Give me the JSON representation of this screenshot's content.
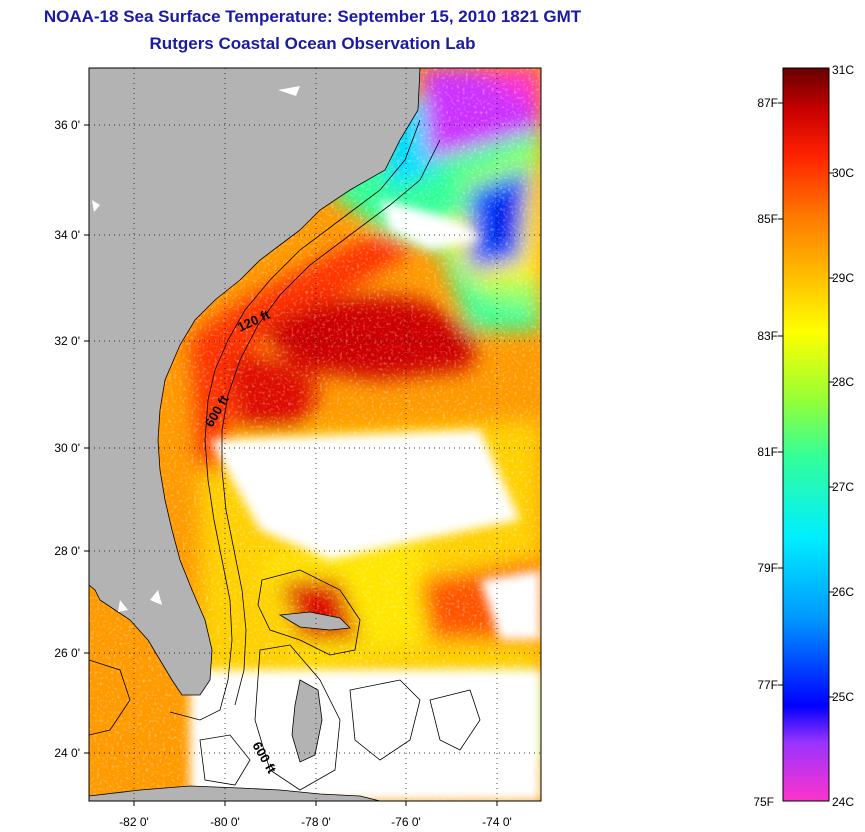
{
  "title": "NOAA-18 Sea Surface Temperature:  September 15, 2010 1821 GMT",
  "subtitle": "Rutgers Coastal Ocean Observation Lab",
  "map": {
    "lon_range": [
      -83,
      -73
    ],
    "lat_range": [
      23,
      37
    ],
    "lon_ticks": [
      "-82 0'",
      "-80 0'",
      "-78 0'",
      "-76 0'",
      "-74 0'"
    ],
    "lat_ticks": [
      "36 0'",
      "34 0'",
      "32 0'",
      "30 0'",
      "28 0'",
      "26 0'",
      "24 0'"
    ],
    "grid": "dotted",
    "land_color": "#b3b3b3",
    "cloud_color": "#ffffff",
    "contour_labels": [
      "120 ft",
      "600 ft",
      "600 ft"
    ]
  },
  "colorbar": {
    "celsius_labels": [
      "31C",
      "30C",
      "29C",
      "28C",
      "27C",
      "26C",
      "25C",
      "24C"
    ],
    "fahrenheit_labels": [
      "87F",
      "85F",
      "83F",
      "81F",
      "79F",
      "77F",
      "75F"
    ],
    "range_c": [
      24,
      31
    ],
    "colors": [
      "#ff33cc",
      "#9933ff",
      "#0000ff",
      "#0099ff",
      "#00eeff",
      "#33ff99",
      "#99ff33",
      "#ffff00",
      "#ffbb00",
      "#ff7700",
      "#ff2200",
      "#cc0000",
      "#660000"
    ]
  }
}
